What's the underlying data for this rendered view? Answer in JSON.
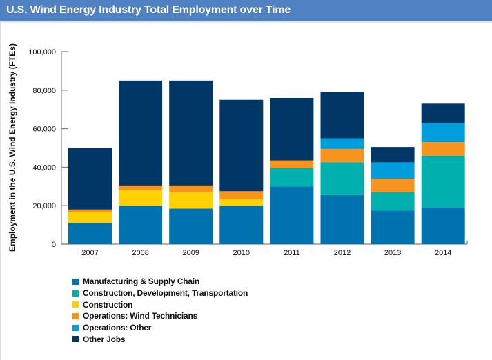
{
  "header": {
    "title": "U.S. Wind Energy Industry Total Employment over Time"
  },
  "chart_data": {
    "type": "bar",
    "stacked": true,
    "title": "U.S. Wind Energy Industry Total Employment over Time",
    "xlabel": "",
    "ylabel": "Employment in the U.S. Wind Energy Industry (FTEs)",
    "ylim": [
      0,
      100000
    ],
    "yticks": [
      0,
      20000,
      40000,
      60000,
      80000,
      100000
    ],
    "ytick_labels": [
      "0",
      "20,000",
      "40,000",
      "60,000",
      "80,000",
      "100,000"
    ],
    "grid": false,
    "legend_position": "bottom-left",
    "categories": [
      "2007",
      "2008",
      "2009",
      "2010",
      "2011",
      "2012",
      "2013",
      "2014"
    ],
    "series": [
      {
        "name": "Manufacturing & Supply Chain",
        "color": "#0072b0",
        "values": [
          11000,
          20000,
          18500,
          20000,
          30000,
          25500,
          17500,
          19000
        ]
      },
      {
        "name": "Construction, Development, Transportation",
        "color": "#00b0ae",
        "values": [
          0,
          0,
          0,
          0,
          9500,
          17000,
          9500,
          27000
        ]
      },
      {
        "name": "Construction",
        "color": "#ffd100",
        "values": [
          5500,
          8000,
          8500,
          3500,
          0,
          0,
          0,
          0
        ]
      },
      {
        "name": "Operations: Wind Technicians",
        "color": "#f7941d",
        "values": [
          1500,
          2500,
          3500,
          4000,
          4000,
          7000,
          7000,
          7000
        ]
      },
      {
        "name": "Operations: Other",
        "color": "#009ddc",
        "values": [
          0,
          0,
          0,
          0,
          0,
          5500,
          8500,
          10000
        ]
      },
      {
        "name": "Other Jobs",
        "color": "#003767",
        "values": [
          32000,
          54500,
          54500,
          47500,
          32500,
          24000,
          8000,
          10000
        ]
      }
    ]
  },
  "legend": {
    "items": [
      {
        "label": "Manufacturing & Supply Chain",
        "color": "#0072b0"
      },
      {
        "label": "Construction, Development, Transportation",
        "color": "#00b0ae"
      },
      {
        "label": "Construction",
        "color": "#ffd100"
      },
      {
        "label": "Operations: Wind Technicians",
        "color": "#f7941d"
      },
      {
        "label": "Operations: Other",
        "color": "#009ddc"
      },
      {
        "label": "Other Jobs",
        "color": "#003767"
      }
    ]
  }
}
